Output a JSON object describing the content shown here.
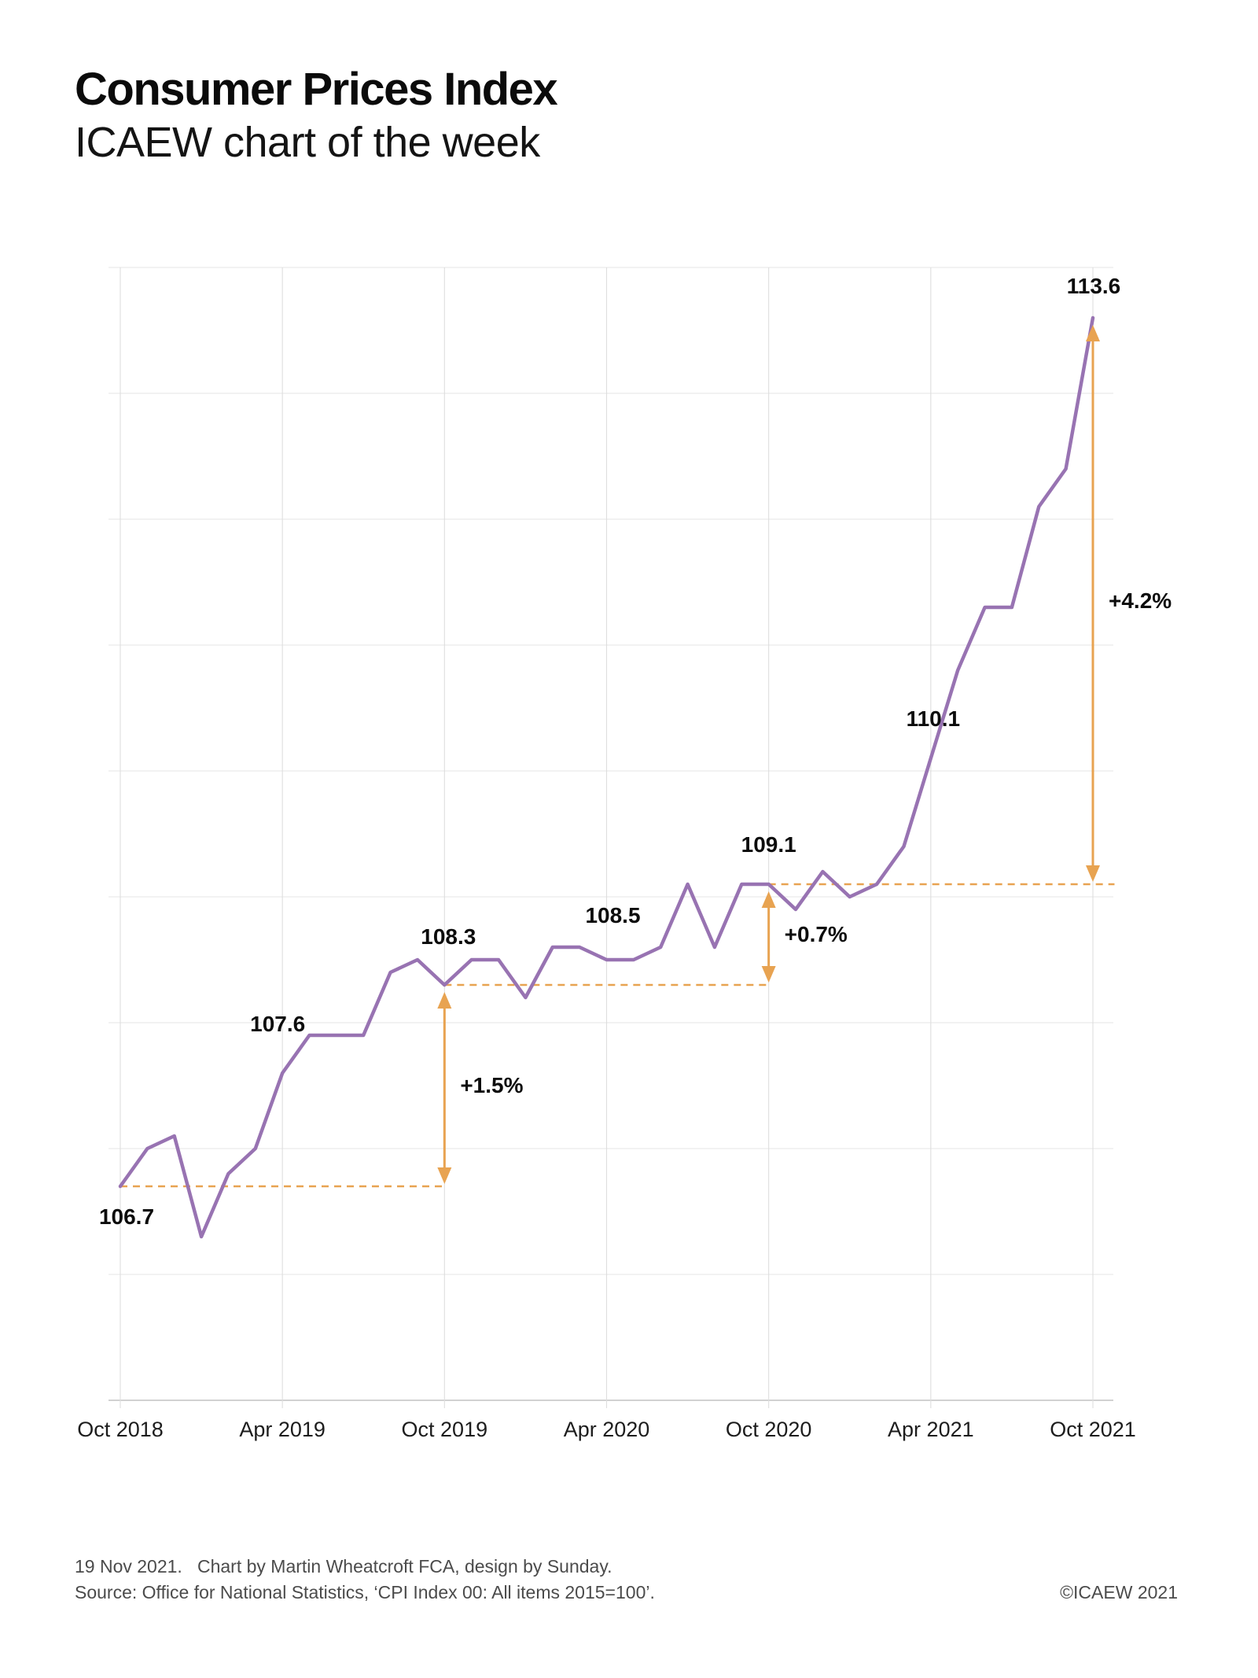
{
  "header": {
    "title": "Consumer Prices Index",
    "subtitle": "ICAEW chart of the week"
  },
  "footer": {
    "line1": "19 Nov 2021.   Chart by Martin Wheatcroft FCA, design by Sunday.",
    "line2": "Source: Office for National Statistics, ‘CPI Index 00: All items 2015=100’.",
    "copyright": "©ICAEW 2021"
  },
  "chart_data": {
    "type": "line",
    "title": "Consumer Prices Index",
    "series_name": "CPI Index 00: All items (2015=100)",
    "months": [
      "Oct 2018",
      "Nov 2018",
      "Dec 2018",
      "Jan 2019",
      "Feb 2019",
      "Mar 2019",
      "Apr 2019",
      "May 2019",
      "Jun 2019",
      "Jul 2019",
      "Aug 2019",
      "Sep 2019",
      "Oct 2019",
      "Nov 2019",
      "Dec 2019",
      "Jan 2020",
      "Feb 2020",
      "Mar 2020",
      "Apr 2020",
      "May 2020",
      "Jun 2020",
      "Jul 2020",
      "Aug 2020",
      "Sep 2020",
      "Oct 2020",
      "Nov 2020",
      "Dec 2020",
      "Jan 2021",
      "Feb 2021",
      "Mar 2021",
      "Apr 2021",
      "May 2021",
      "Jun 2021",
      "Jul 2021",
      "Aug 2021",
      "Sep 2021",
      "Oct 2021"
    ],
    "values": [
      106.7,
      107.0,
      107.1,
      106.3,
      106.8,
      107.0,
      107.6,
      107.9,
      107.9,
      107.9,
      108.4,
      108.5,
      108.3,
      108.5,
      108.5,
      108.2,
      108.6,
      108.6,
      108.5,
      108.5,
      108.6,
      109.1,
      108.6,
      109.1,
      109.1,
      108.9,
      109.2,
      109.0,
      109.1,
      109.4,
      110.1,
      110.8,
      111.3,
      111.3,
      112.1,
      112.4,
      113.6
    ],
    "x_tick_labels": [
      "Oct 2018",
      "Apr 2019",
      "Oct 2019",
      "Apr 2020",
      "Oct 2020",
      "Apr 2021",
      "Oct 2021"
    ],
    "ylim": [
      105,
      114
    ],
    "y_gridline_interval": 1,
    "grid": true,
    "legend": "none",
    "point_labels": [
      {
        "text": "106.7",
        "month": 0,
        "value": 106.7
      },
      {
        "text": "107.6",
        "month": 6,
        "value": 107.6
      },
      {
        "text": "108.3",
        "month": 12,
        "value": 108.3
      },
      {
        "text": "108.5",
        "month": 18,
        "value": 108.5
      },
      {
        "text": "109.1",
        "month": 24,
        "value": 109.1
      },
      {
        "text": "110.1",
        "month": 30,
        "value": 110.1
      },
      {
        "text": "113.6",
        "month": 36,
        "value": 113.6
      }
    ],
    "change_annotations": [
      {
        "text": "+1.5%",
        "month": 12,
        "from_value": 106.7,
        "to_value": 108.3
      },
      {
        "text": "+0.7%",
        "month": 24,
        "from_value": 108.3,
        "to_value": 109.1
      },
      {
        "text": "+4.2%",
        "month": 36,
        "from_value": 109.1,
        "to_value": 113.6
      }
    ],
    "reference_dashes": [
      {
        "value": 106.7,
        "from_month": 0,
        "to_month": 12
      },
      {
        "value": 108.3,
        "from_month": 12,
        "to_month": 24
      },
      {
        "value": 109.1,
        "from_month": 24,
        "to_month": 36.8
      }
    ],
    "colors": {
      "line": "#9873b2",
      "accent": "#e8a351",
      "gridline": "#e4e4e4",
      "vertical_gridline": "#dedede",
      "axis": "#c2c2c2"
    }
  }
}
